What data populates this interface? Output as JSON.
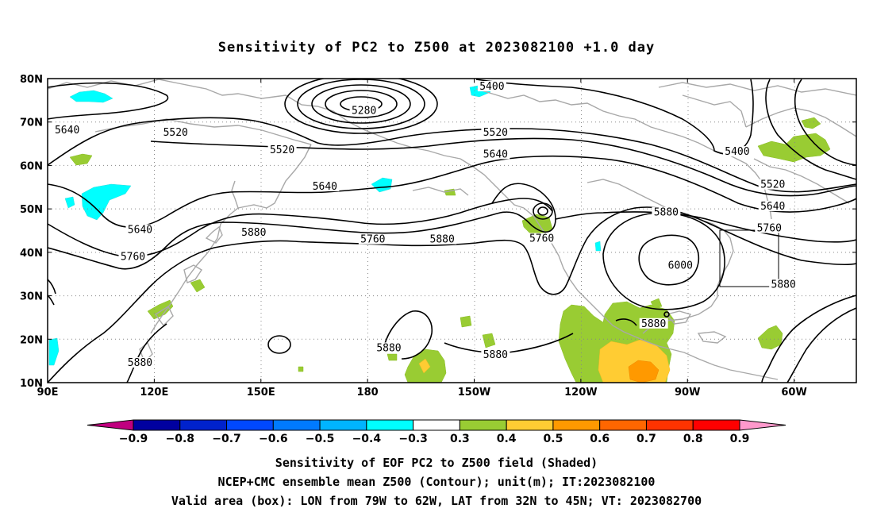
{
  "title": "Sensitivity of PC2 to Z500 at 2023082100 +1.0 day",
  "map": {
    "lat_labels": [
      {
        "lat": 80,
        "text": "80N"
      },
      {
        "lat": 70,
        "text": "70N"
      },
      {
        "lat": 60,
        "text": "60N"
      },
      {
        "lat": 50,
        "text": "50N"
      },
      {
        "lat": 40,
        "text": "40N"
      },
      {
        "lat": 30,
        "text": "30N"
      },
      {
        "lat": 20,
        "text": "20N"
      },
      {
        "lat": 10,
        "text": "10N"
      }
    ],
    "lon_labels": [
      {
        "lon": 90,
        "text": "90E"
      },
      {
        "lon": 120,
        "text": "120E"
      },
      {
        "lon": 150,
        "text": "150E"
      },
      {
        "lon": 180,
        "text": "180"
      },
      {
        "lon": 210,
        "text": "150W"
      },
      {
        "lon": 240,
        "text": "120W"
      },
      {
        "lon": 270,
        "text": "90W"
      },
      {
        "lon": 300,
        "text": "60W"
      }
    ],
    "contour_labels": [
      {
        "text": "5640",
        "lon": 95.5,
        "lat": 67.8
      },
      {
        "text": "5520",
        "lon": 126,
        "lat": 67.2
      },
      {
        "text": "5520",
        "lon": 156,
        "lat": 63.2
      },
      {
        "text": "5280",
        "lon": 179,
        "lat": 72.2
      },
      {
        "text": "5400",
        "lon": 215,
        "lat": 77.8
      },
      {
        "text": "5520",
        "lon": 216,
        "lat": 67.2
      },
      {
        "text": "5640",
        "lon": 216,
        "lat": 62.2
      },
      {
        "text": "5400",
        "lon": 284,
        "lat": 62.8
      },
      {
        "text": "5640",
        "lon": 168,
        "lat": 54.8
      },
      {
        "text": "5520",
        "lon": 294,
        "lat": 55.2
      },
      {
        "text": "5640",
        "lon": 294,
        "lat": 50.2
      },
      {
        "text": "5640",
        "lon": 116,
        "lat": 44.8
      },
      {
        "text": "5880",
        "lon": 148,
        "lat": 44.2
      },
      {
        "text": "5760",
        "lon": 181.5,
        "lat": 42.6
      },
      {
        "text": "5880",
        "lon": 201,
        "lat": 42.6
      },
      {
        "text": "5760",
        "lon": 229,
        "lat": 42.8
      },
      {
        "text": "5880",
        "lon": 264,
        "lat": 48.8
      },
      {
        "text": "5760",
        "lon": 293,
        "lat": 45.2
      },
      {
        "text": "5760",
        "lon": 114,
        "lat": 38.6
      },
      {
        "text": "6000",
        "lon": 268,
        "lat": 36.6
      },
      {
        "text": "5880",
        "lon": 297,
        "lat": 32.2
      },
      {
        "text": "5880",
        "lon": 260.5,
        "lat": 23.2
      },
      {
        "text": "5880",
        "lon": 116,
        "lat": 14.2
      },
      {
        "text": "5880",
        "lon": 186,
        "lat": 17.6
      },
      {
        "text": "5880",
        "lon": 216,
        "lat": 16.0
      }
    ]
  },
  "colorbar": {
    "colors": [
      "#c0007f",
      "#00009f",
      "#0022cc",
      "#0048ff",
      "#007aff",
      "#00b4ff",
      "#00ffff",
      "#ffffff",
      "#99cc33",
      "#ffcc33",
      "#ff9900",
      "#ff6600",
      "#ff3300",
      "#ff0000",
      "#ff99cc"
    ],
    "labels": [
      "−0.9",
      "−0.8",
      "−0.7",
      "−0.6",
      "−0.5",
      "−0.4",
      "−0.3",
      "0.3",
      "0.4",
      "0.5",
      "0.6",
      "0.7",
      "0.8",
      "0.9"
    ]
  },
  "captions": [
    "Sensitivity of EOF PC2 to Z500 field (Shaded)",
    "NCEP+CMC ensemble mean Z500 (Contour); unit(m); IT:2023082100",
    "Valid area (box): LON from 79W to 62W, LAT from 32N to 45N; VT: 2023082700"
  ]
}
